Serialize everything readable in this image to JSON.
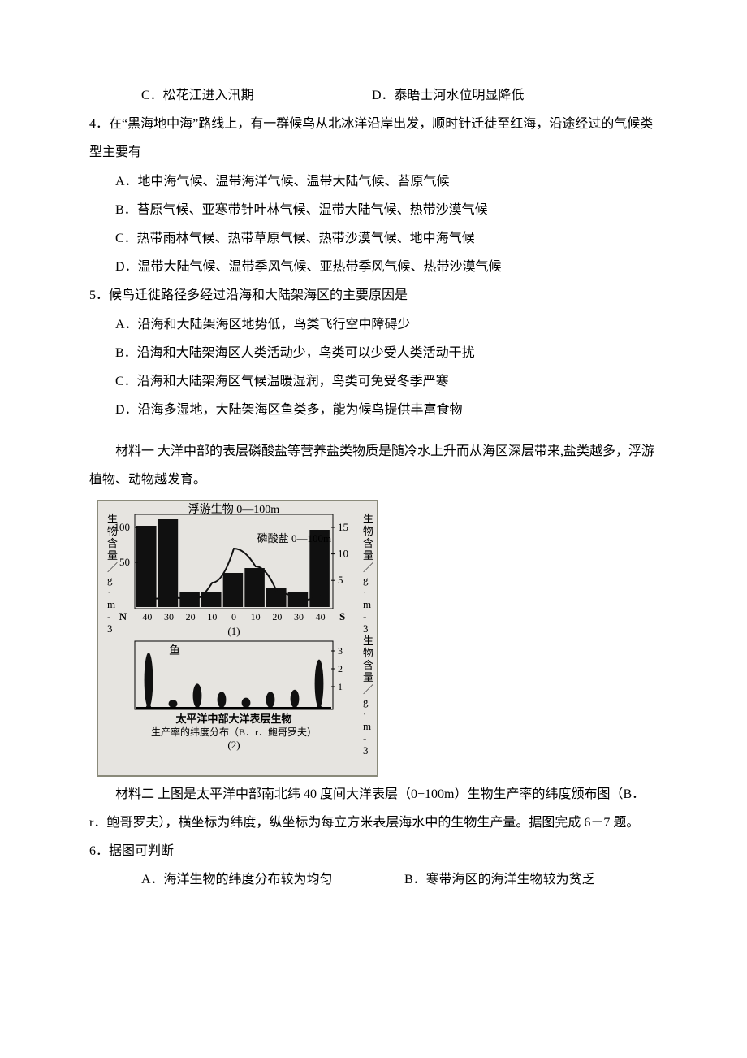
{
  "question3_options": {
    "C": "C．松花江进入汛期",
    "D": "D．泰晤士河水位明显降低"
  },
  "question4": {
    "stem": "4．在“黑海地中海”路线上，有一群候鸟从北冰洋沿岸出发，顺时针迁徙至红海，沿途经过的气候类型主要有",
    "A": "A．地中海气候、温带海洋气候、温带大陆气候、苔原气候",
    "B": "B．苔原气候、亚寒带针叶林气候、温带大陆气候、热带沙漠气候",
    "C": "C．热带雨林气候、热带草原气候、热带沙漠气候、地中海气候",
    "D": "D．温带大陆气候、温带季风气候、亚热带季风气候、热带沙漠气候"
  },
  "question5": {
    "stem": "5．候鸟迁徙路径多经过沿海和大陆架海区的主要原因是",
    "A": "A．沿海和大陆架海区地势低，鸟类飞行空中障碍少",
    "B": "B．沿海和大陆架海区人类活动少，鸟类可以少受人类活动干扰",
    "C": "C．沿海和大陆架海区气候温暖湿润，鸟类可免受冬季严寒",
    "D": "D．沿海多湿地，大陆架海区鱼类多，能为候鸟提供丰富食物"
  },
  "material1": "材料一   大洋中部的表层磷酸盐等营养盐类物质是随冷水上升而从海区深层带来,盐类越多，浮游植物、动物越发育。",
  "material2": "材料二   上图是太平洋中部南北纬 40 度间大洋表层（0−100m）生物生产率的纬度颁布图（B．r．鲍哥罗夫），横坐标为纬度，纵坐标为每立方米表层海水中的生物生产量。据图完成 6－7 题。",
  "question6": {
    "stem": "6．据图可判断",
    "A": "A．海洋生物的纬度分布较为均匀",
    "B": "B．寒带海区的海洋生物较为贫乏"
  },
  "figure": {
    "title_top": "浮游生物 0—100m",
    "phosphate_label": "磷酸盐 0—100m",
    "left_axis_label": "生物含量／g·m-3",
    "right_axis_label_1": "生物含量／g·m-3",
    "right_axis_label_2": "生物含量／g·m-3",
    "panel1": {
      "y_left_ticks": [
        "100",
        "50"
      ],
      "y_right_ticks": [
        "15",
        "10",
        "5"
      ],
      "x_ticks": [
        "40",
        "30",
        "20",
        "10",
        "0",
        "10",
        "20",
        "30",
        "40"
      ],
      "N": "N",
      "S": "S",
      "caption": "(1)",
      "bars_N_to_S": [
        100,
        108,
        18,
        18,
        42,
        48,
        24,
        18,
        95
      ],
      "bar_color": "#101010",
      "curve_color": "#101010",
      "grid_color": "#101010",
      "bg": "#e6e4e0"
    },
    "panel2": {
      "fish_label": "鱼",
      "right_ticks": [
        "3",
        "2",
        "1"
      ],
      "caption_line1": "太平洋中部大洋表层生物",
      "caption_line2": "生产率的纬度分布（B．r．鲍哥罗夫）",
      "caption_num": "(2)",
      "fish_heights": [
        55,
        8,
        24,
        16,
        10,
        16,
        18,
        48
      ],
      "bg": "#e6e4e0",
      "fill": "#101010"
    },
    "border_color": "#8a8a7a"
  }
}
